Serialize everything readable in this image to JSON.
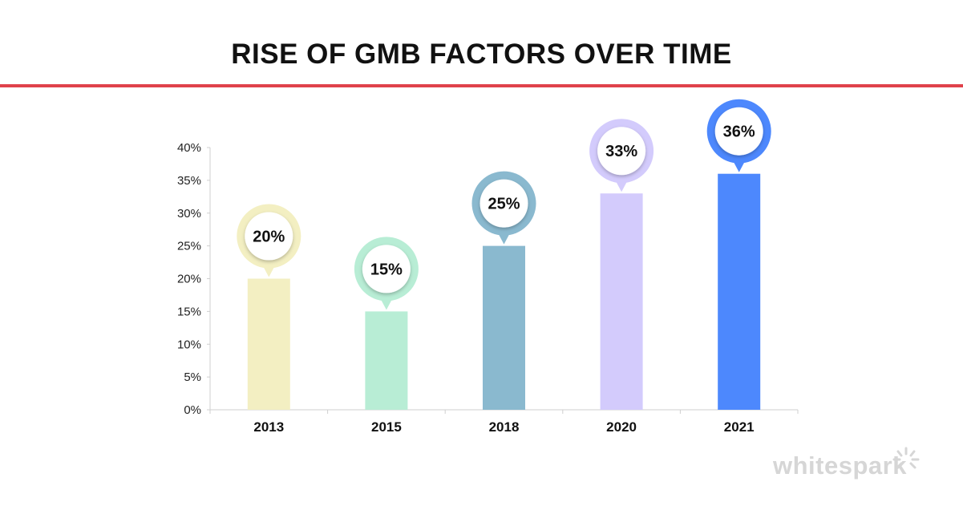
{
  "colors": {
    "rule": "#e0424b",
    "axis": "#cfcfcf",
    "logo": "#d6d6d6"
  },
  "brand": {
    "name": "whitespark"
  },
  "chart_data": {
    "type": "bar",
    "title": "RISE OF GMB FACTORS OVER TIME",
    "categories": [
      "2013",
      "2015",
      "2018",
      "2020",
      "2021"
    ],
    "values": [
      20,
      15,
      25,
      33,
      36
    ],
    "data_labels": [
      "20%",
      "15%",
      "25%",
      "33%",
      "36%"
    ],
    "bar_colors": [
      "#f3efc2",
      "#b8edd5",
      "#8ab9cf",
      "#d3cbfc",
      "#4d88fd"
    ],
    "bubble_ring_colors": [
      "#f3efc2",
      "#b8edd5",
      "#8ab9cf",
      "#d3cbfc",
      "#4d88fd"
    ],
    "ylim": [
      0,
      40
    ],
    "yticks": [
      "0%",
      "5%",
      "10%",
      "15%",
      "20%",
      "25%",
      "30%",
      "35%",
      "40%"
    ],
    "xlabel": "",
    "ylabel": "",
    "grid": false,
    "legend": "none"
  }
}
